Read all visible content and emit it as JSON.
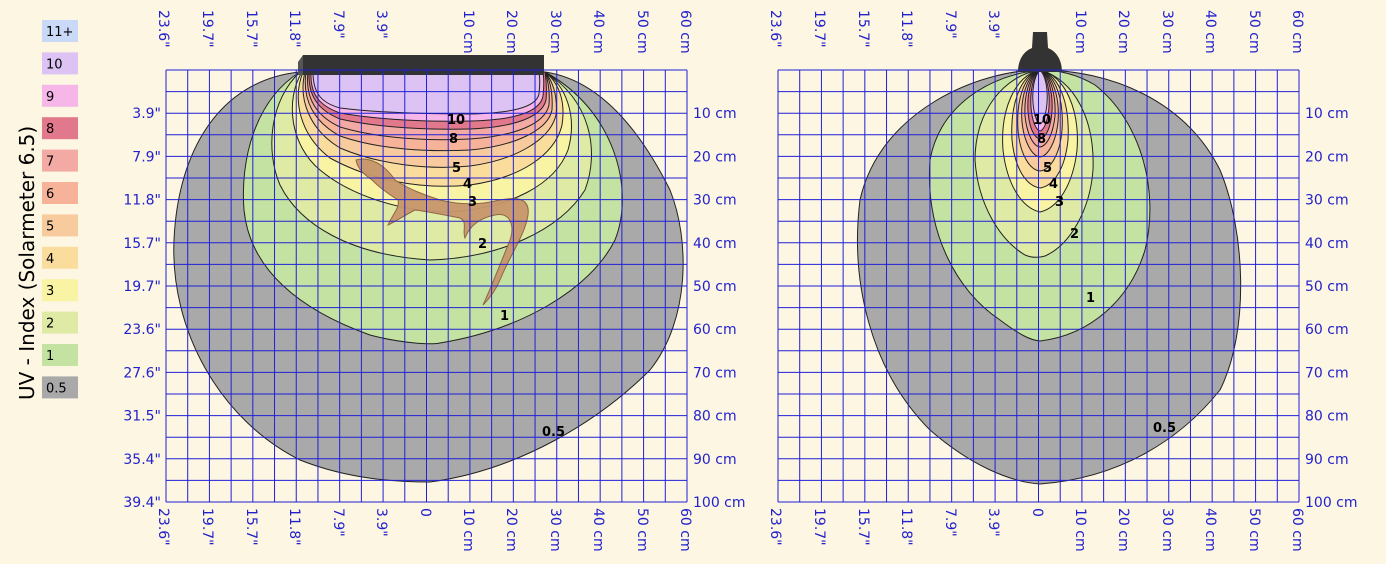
{
  "title": "UV - Index (Solarmeter 6.5)",
  "legend": [
    {
      "label": "11+",
      "color": "#c9d9f7"
    },
    {
      "label": "10",
      "color": "#dcc3f3"
    },
    {
      "label": "9",
      "color": "#f6b6e8"
    },
    {
      "label": "8",
      "color": "#e2788c"
    },
    {
      "label": "7",
      "color": "#f3aaa5"
    },
    {
      "label": "6",
      "color": "#f7b399"
    },
    {
      "label": "5",
      "color": "#f8cb9e"
    },
    {
      "label": "4",
      "color": "#fadd9c"
    },
    {
      "label": "3",
      "color": "#f9f4a3"
    },
    {
      "label": "2",
      "color": "#dfeaa4"
    },
    {
      "label": "1",
      "color": "#c4e3a2"
    },
    {
      "label": "0.5",
      "color": "#a9a9a9"
    }
  ],
  "axes": {
    "top_inches": [
      "23.6\"",
      "19.7\"",
      "15.7\"",
      "11.8\"",
      "7.9\"",
      "3.9\""
    ],
    "top_cm": [
      "10 cm",
      "20 cm",
      "30 cm",
      "40 cm",
      "50 cm",
      "60 cm"
    ],
    "bottom_left": [
      "23.6\"",
      "19.7\"",
      "15.7\"",
      "11.8\"",
      "7.9\"",
      "3.9\"",
      "0"
    ],
    "bottom_cm": [
      "10 cm",
      "20 cm",
      "30 cm",
      "40 cm",
      "50 cm",
      "60 cm"
    ],
    "left_inches": [
      "3.9\"",
      "7.9\"",
      "11.8\"",
      "15.7\"",
      "19.7\"",
      "23.6\"",
      "27.6\"",
      "31.5\"",
      "35.4\"",
      "39.4\""
    ],
    "right_cm": [
      "10 cm",
      "20 cm",
      "30 cm",
      "40 cm",
      "50 cm",
      "60 cm",
      "70 cm",
      "80 cm",
      "90 cm",
      "100 cm"
    ]
  },
  "left_panel": {
    "level_labels": [
      "10",
      "8",
      "5",
      "4",
      "3",
      "2",
      "1",
      "0.5"
    ]
  },
  "right_panel": {
    "level_labels": [
      "10",
      "8",
      "5",
      "4",
      "3",
      "2",
      "1",
      "0.5"
    ]
  }
}
